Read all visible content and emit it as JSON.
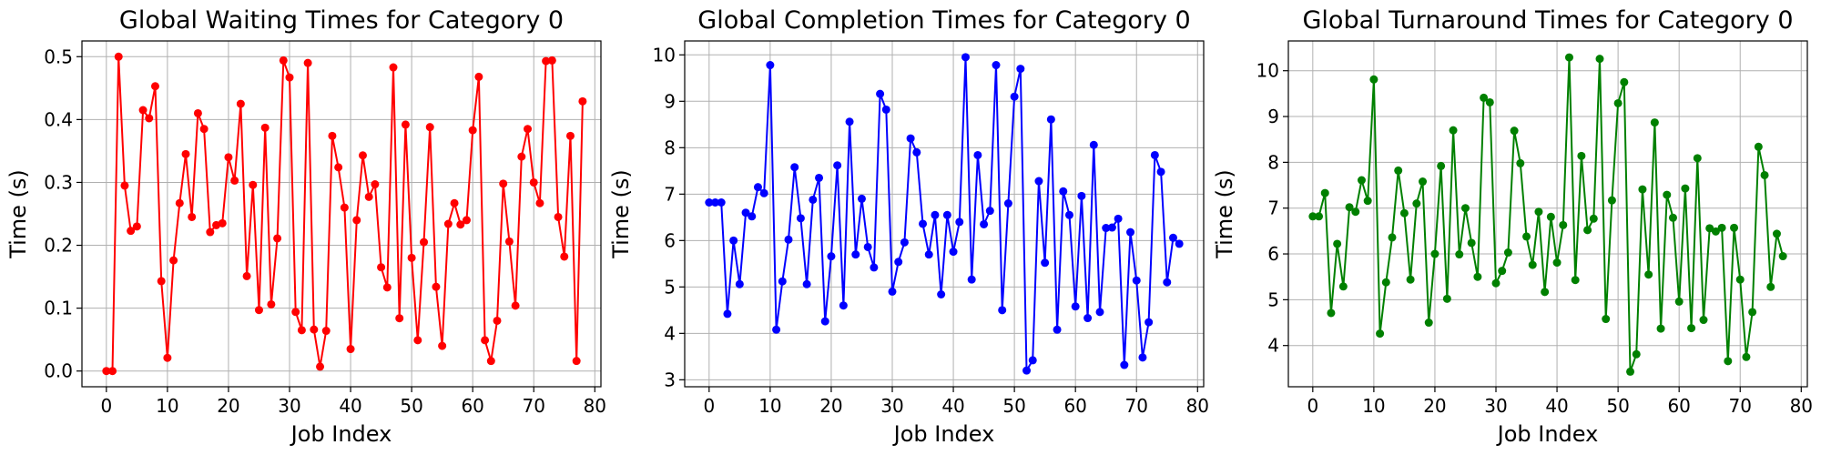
{
  "chart_data": [
    {
      "type": "line",
      "title": "Global Waiting Times for Category 0",
      "xlabel": "Job Index",
      "ylabel": "Time (s)",
      "xlim": [
        -4,
        81
      ],
      "ylim": [
        -0.025,
        0.525
      ],
      "xticks": [
        0,
        10,
        20,
        30,
        40,
        50,
        60,
        70,
        80
      ],
      "yticks": [
        0.0,
        0.1,
        0.2,
        0.3,
        0.4,
        0.5
      ],
      "ytick_labels": [
        "0.0",
        "0.1",
        "0.2",
        "0.3",
        "0.4",
        "0.5"
      ],
      "grid": true,
      "color": "#ff0000",
      "series": [
        {
          "x": [
            0,
            1,
            2,
            3,
            4,
            5,
            6,
            7,
            8,
            9,
            10,
            11,
            12,
            13,
            14,
            15,
            16,
            17,
            18,
            19,
            20,
            21,
            22,
            23,
            24,
            25,
            26,
            27,
            28,
            29,
            30,
            31,
            32,
            33,
            34,
            35,
            36,
            37,
            38,
            39,
            40,
            41,
            42,
            43,
            44,
            45,
            46,
            47,
            48,
            49,
            50,
            51,
            52,
            53,
            54,
            55,
            56,
            57,
            58,
            59,
            60,
            61,
            62,
            63,
            64,
            65,
            66,
            67,
            68,
            69,
            70,
            71,
            72,
            73,
            74,
            75,
            76,
            77,
            78
          ],
          "values": [
            0.0,
            0.0,
            0.5,
            0.295,
            0.223,
            0.23,
            0.415,
            0.402,
            0.453,
            0.143,
            0.021,
            0.176,
            0.267,
            0.345,
            0.245,
            0.41,
            0.385,
            0.221,
            0.232,
            0.235,
            0.34,
            0.303,
            0.425,
            0.151,
            0.296,
            0.097,
            0.387,
            0.106,
            0.211,
            0.494,
            0.467,
            0.094,
            0.065,
            0.49,
            0.066,
            0.007,
            0.064,
            0.374,
            0.324,
            0.26,
            0.035,
            0.24,
            0.343,
            0.277,
            0.297,
            0.165,
            0.133,
            0.483,
            0.084,
            0.392,
            0.18,
            0.049,
            0.205,
            0.388,
            0.134,
            0.04,
            0.234,
            0.267,
            0.233,
            0.24,
            0.383,
            0.468,
            0.049,
            0.016,
            0.08,
            0.298,
            0.206,
            0.104,
            0.341,
            0.385,
            0.3,
            0.267,
            0.493,
            0.494,
            0.245,
            0.182,
            0.374,
            0.016,
            0.429
          ]
        }
      ]
    },
    {
      "type": "line",
      "title": "Global Completion Times for Category 0",
      "xlabel": "Job Index",
      "ylabel": "Time (s)",
      "xlim": [
        -4,
        81
      ],
      "ylim": [
        2.85,
        10.3
      ],
      "xticks": [
        0,
        10,
        20,
        30,
        40,
        50,
        60,
        70,
        80
      ],
      "yticks": [
        3,
        4,
        5,
        6,
        7,
        8,
        9,
        10
      ],
      "ytick_labels": [
        "3",
        "4",
        "5",
        "6",
        "7",
        "8",
        "9",
        "10"
      ],
      "grid": true,
      "color": "#0000ff",
      "series": [
        {
          "x": [
            0,
            1,
            2,
            3,
            4,
            5,
            6,
            7,
            8,
            9,
            10,
            11,
            12,
            13,
            14,
            15,
            16,
            17,
            18,
            19,
            20,
            21,
            22,
            23,
            24,
            25,
            26,
            27,
            28,
            29,
            30,
            31,
            32,
            33,
            34,
            35,
            36,
            37,
            38,
            39,
            40,
            41,
            42,
            43,
            44,
            45,
            46,
            47,
            48,
            49,
            50,
            51,
            52,
            53,
            54,
            55,
            56,
            57,
            58,
            59,
            60,
            61,
            62,
            63,
            64,
            65,
            66,
            67,
            68,
            69,
            70,
            71,
            72,
            73,
            74,
            75,
            76,
            77
          ],
          "values": [
            6.82,
            6.82,
            6.82,
            4.42,
            6.0,
            5.06,
            6.6,
            6.52,
            7.15,
            7.02,
            9.78,
            4.08,
            5.12,
            6.02,
            7.58,
            6.48,
            5.06,
            6.88,
            7.35,
            4.26,
            5.66,
            7.62,
            4.6,
            8.56,
            5.7,
            6.9,
            5.86,
            5.42,
            9.16,
            8.82,
            4.9,
            5.54,
            5.96,
            8.2,
            7.9,
            6.36,
            5.7,
            6.55,
            4.84,
            6.55,
            5.76,
            6.4,
            9.95,
            5.16,
            7.84,
            6.35,
            6.64,
            9.78,
            4.5,
            6.8,
            9.1,
            9.7,
            3.2,
            3.42,
            7.28,
            5.52,
            8.61,
            4.08,
            7.06,
            6.55,
            4.58,
            6.96,
            4.33,
            8.06,
            4.46,
            6.27,
            6.28,
            6.47,
            3.32,
            6.18,
            5.14,
            3.48,
            4.24,
            7.84,
            7.48,
            5.1,
            6.06,
            5.93
          ]
        }
      ]
    },
    {
      "type": "line",
      "title": "Global Turnaround Times for Category 0",
      "xlabel": "Job Index",
      "ylabel": "Time (s)",
      "xlim": [
        -4,
        81
      ],
      "ylim": [
        3.1,
        10.65
      ],
      "xticks": [
        0,
        10,
        20,
        30,
        40,
        50,
        60,
        70,
        80
      ],
      "yticks": [
        4,
        5,
        6,
        7,
        8,
        9,
        10
      ],
      "ytick_labels": [
        "4",
        "5",
        "6",
        "7",
        "8",
        "9",
        "10"
      ],
      "grid": true,
      "color": "#008000",
      "series": [
        {
          "x": [
            0,
            1,
            2,
            3,
            4,
            5,
            6,
            7,
            8,
            9,
            10,
            11,
            12,
            13,
            14,
            15,
            16,
            17,
            18,
            19,
            20,
            21,
            22,
            23,
            24,
            25,
            26,
            27,
            28,
            29,
            30,
            31,
            32,
            33,
            34,
            35,
            36,
            37,
            38,
            39,
            40,
            41,
            42,
            43,
            44,
            45,
            46,
            47,
            48,
            49,
            50,
            51,
            52,
            53,
            54,
            55,
            56,
            57,
            58,
            59,
            60,
            61,
            62,
            63,
            64,
            65,
            66,
            67,
            68,
            69,
            70,
            71,
            72,
            73,
            74,
            75,
            76,
            77
          ],
          "values": [
            6.82,
            6.82,
            7.33,
            4.71,
            6.22,
            5.29,
            7.02,
            6.92,
            7.61,
            7.16,
            9.81,
            4.26,
            5.38,
            6.36,
            7.82,
            6.89,
            5.44,
            7.1,
            7.58,
            4.5,
            6.0,
            7.92,
            5.02,
            8.7,
            5.99,
            7.0,
            6.24,
            5.5,
            9.41,
            9.31,
            5.36,
            5.63,
            6.03,
            8.69,
            7.98,
            6.38,
            5.76,
            6.92,
            5.17,
            6.81,
            5.81,
            6.63,
            10.29,
            5.43,
            8.14,
            6.52,
            6.77,
            10.26,
            4.58,
            7.17,
            9.29,
            9.75,
            3.43,
            3.81,
            7.41,
            5.55,
            8.87,
            4.37,
            7.29,
            6.79,
            4.96,
            7.43,
            4.38,
            8.09,
            4.56,
            6.56,
            6.49,
            6.57,
            3.66,
            6.57,
            5.44,
            3.75,
            4.73,
            8.34,
            7.72,
            5.28,
            6.44,
            5.95
          ]
        }
      ]
    }
  ]
}
